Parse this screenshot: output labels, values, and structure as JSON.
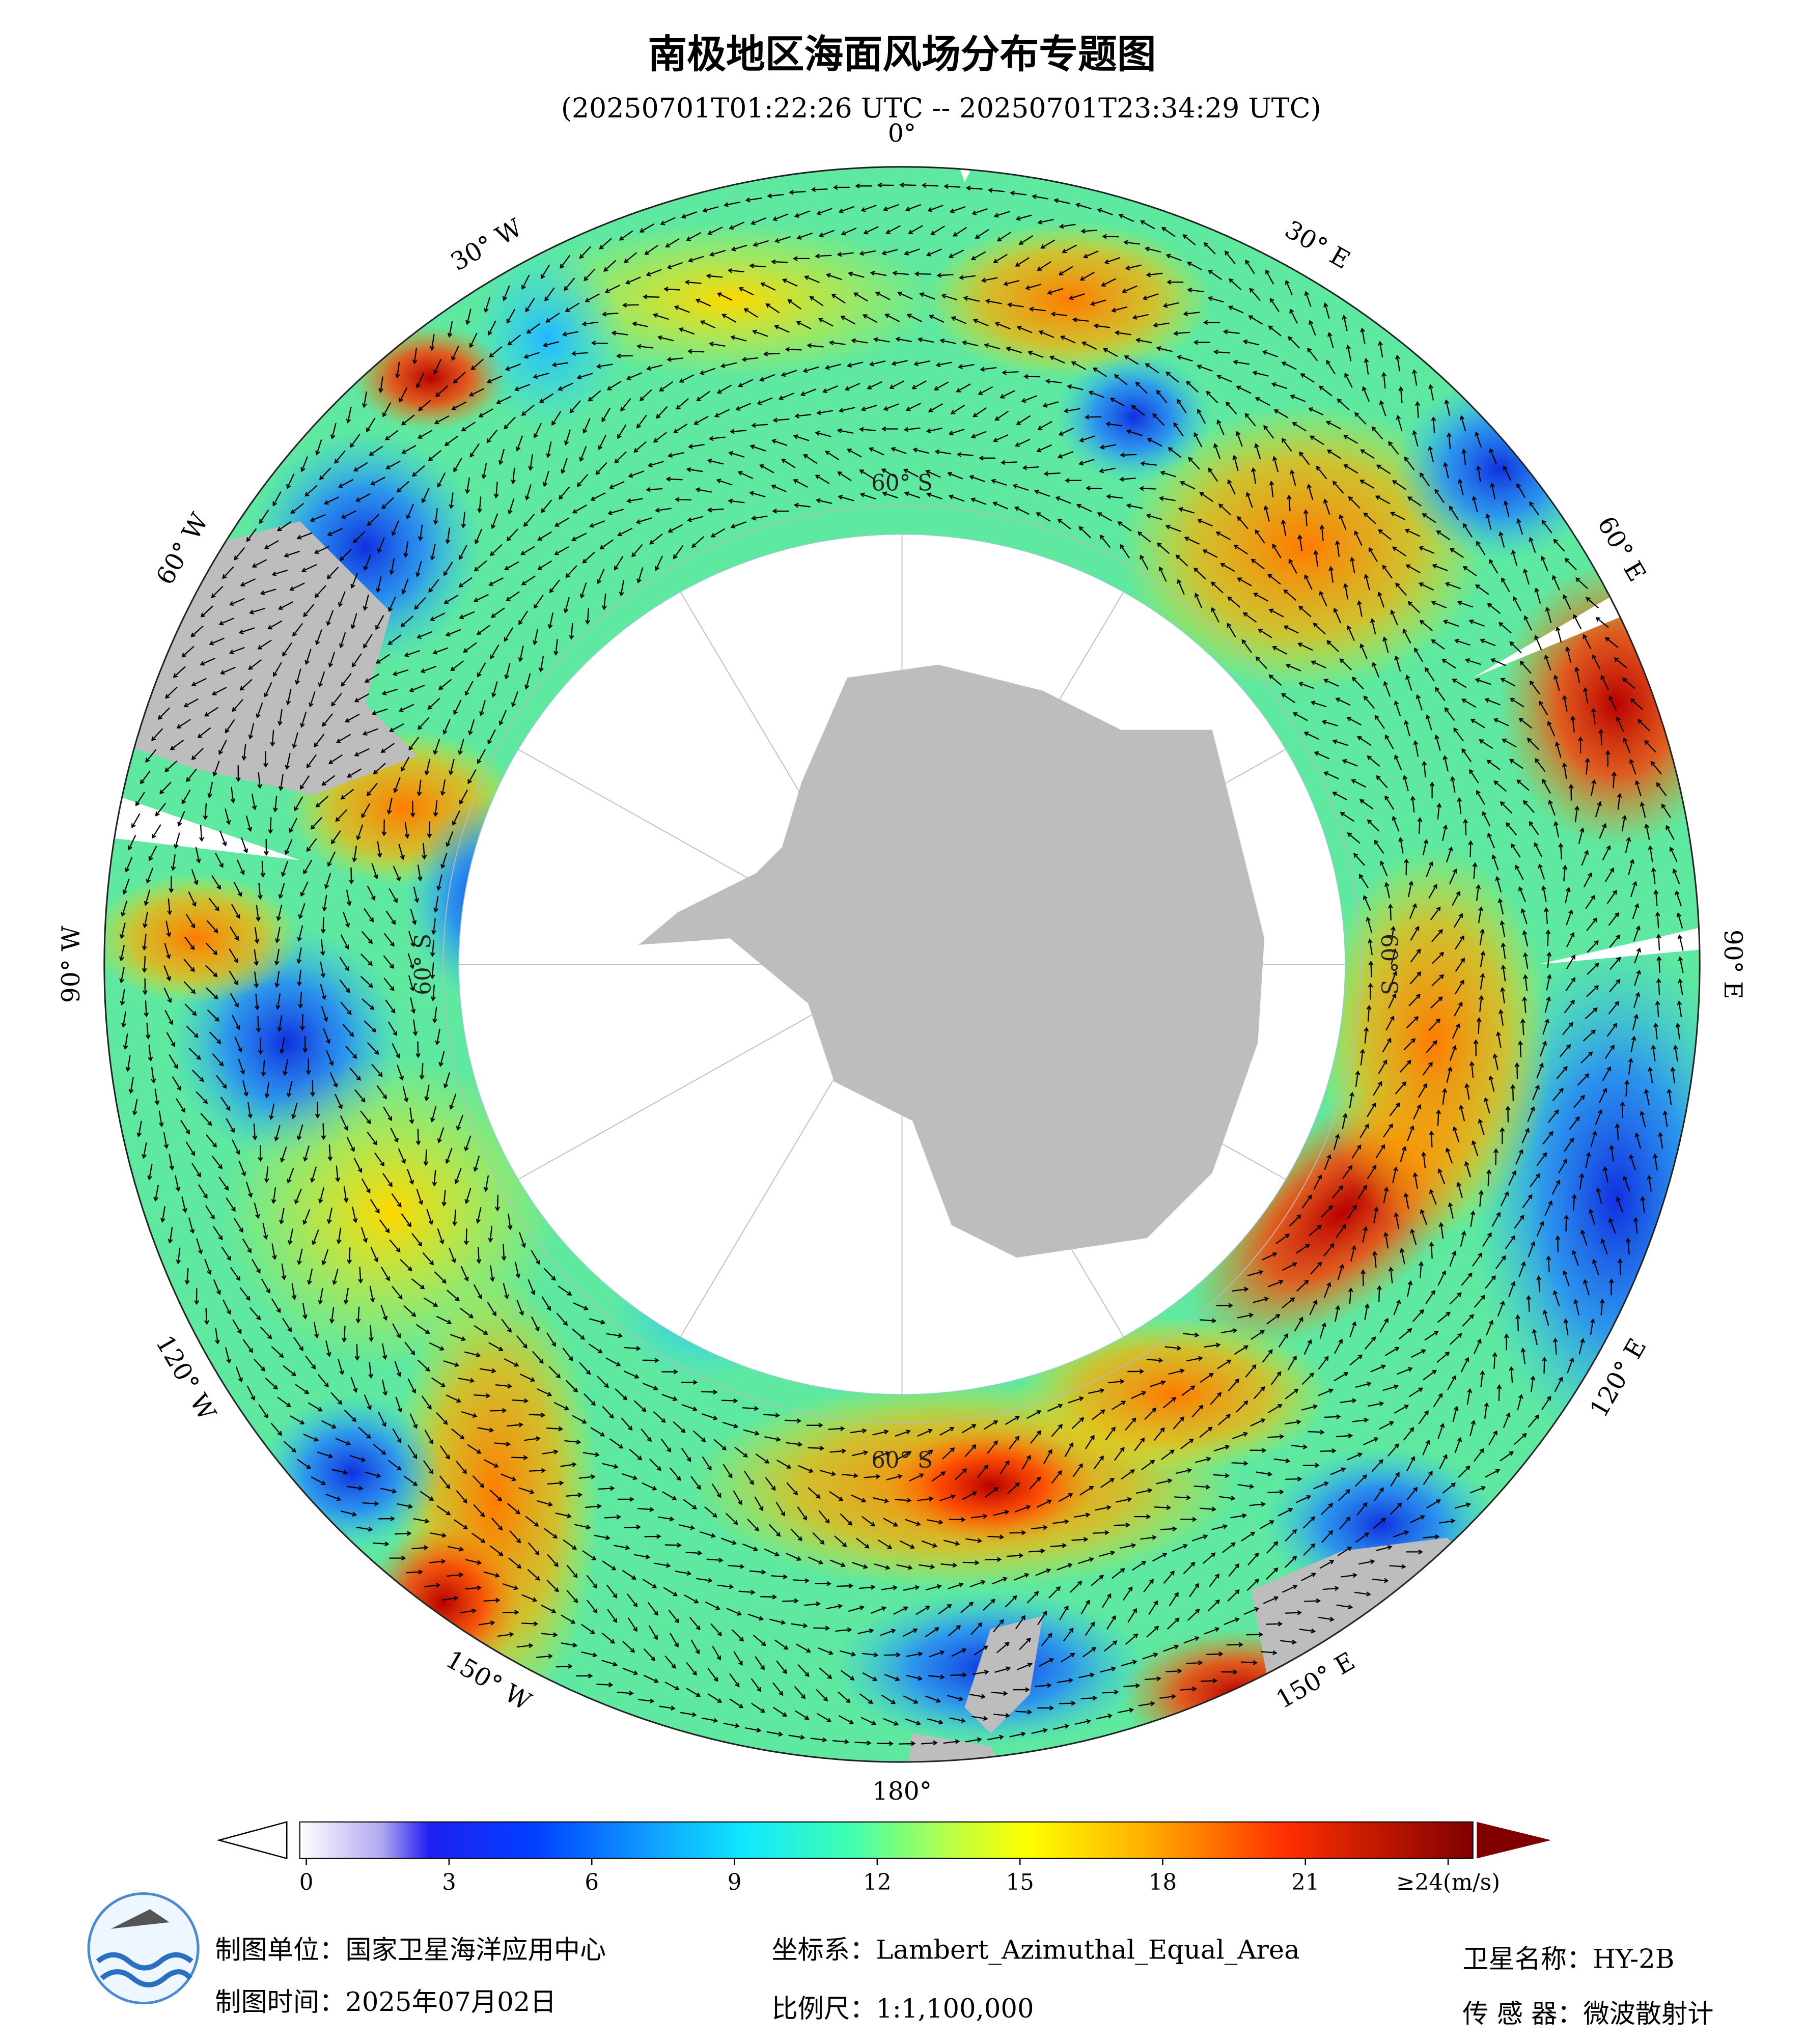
{
  "header": {
    "title": "南极地区海面风场分布专题图",
    "subtitle": "(20250701T01:22:26 UTC -- 20250701T23:34:29 UTC)"
  },
  "map": {
    "longitude_labels": [
      "0°",
      "30° E",
      "60° E",
      "90° E",
      "120° E",
      "150° E",
      "180°",
      "150° W",
      "120° W",
      "90° W",
      "60° W",
      "30° W"
    ],
    "latitude_labels": [
      "60° S",
      "60° S",
      "60° S",
      "60° S"
    ]
  },
  "colorbar": {
    "range": [
      0,
      24
    ],
    "ticks": [
      0,
      3,
      6,
      9,
      12,
      15,
      18,
      21,
      {
        "value": 24,
        "label": "≥24(m/s)"
      }
    ]
  },
  "footer": {
    "unit": "制图单位：国家卫星海洋应用中心",
    "date": "制图时间：2025年07月02日",
    "crs": "坐标系：Lambert_Azimuthal_Equal_Area",
    "scale": "比例尺：1:1,100,000",
    "satellite": "卫星名称：HY-2B",
    "sensor": "传 感 器：微波散射计"
  }
}
